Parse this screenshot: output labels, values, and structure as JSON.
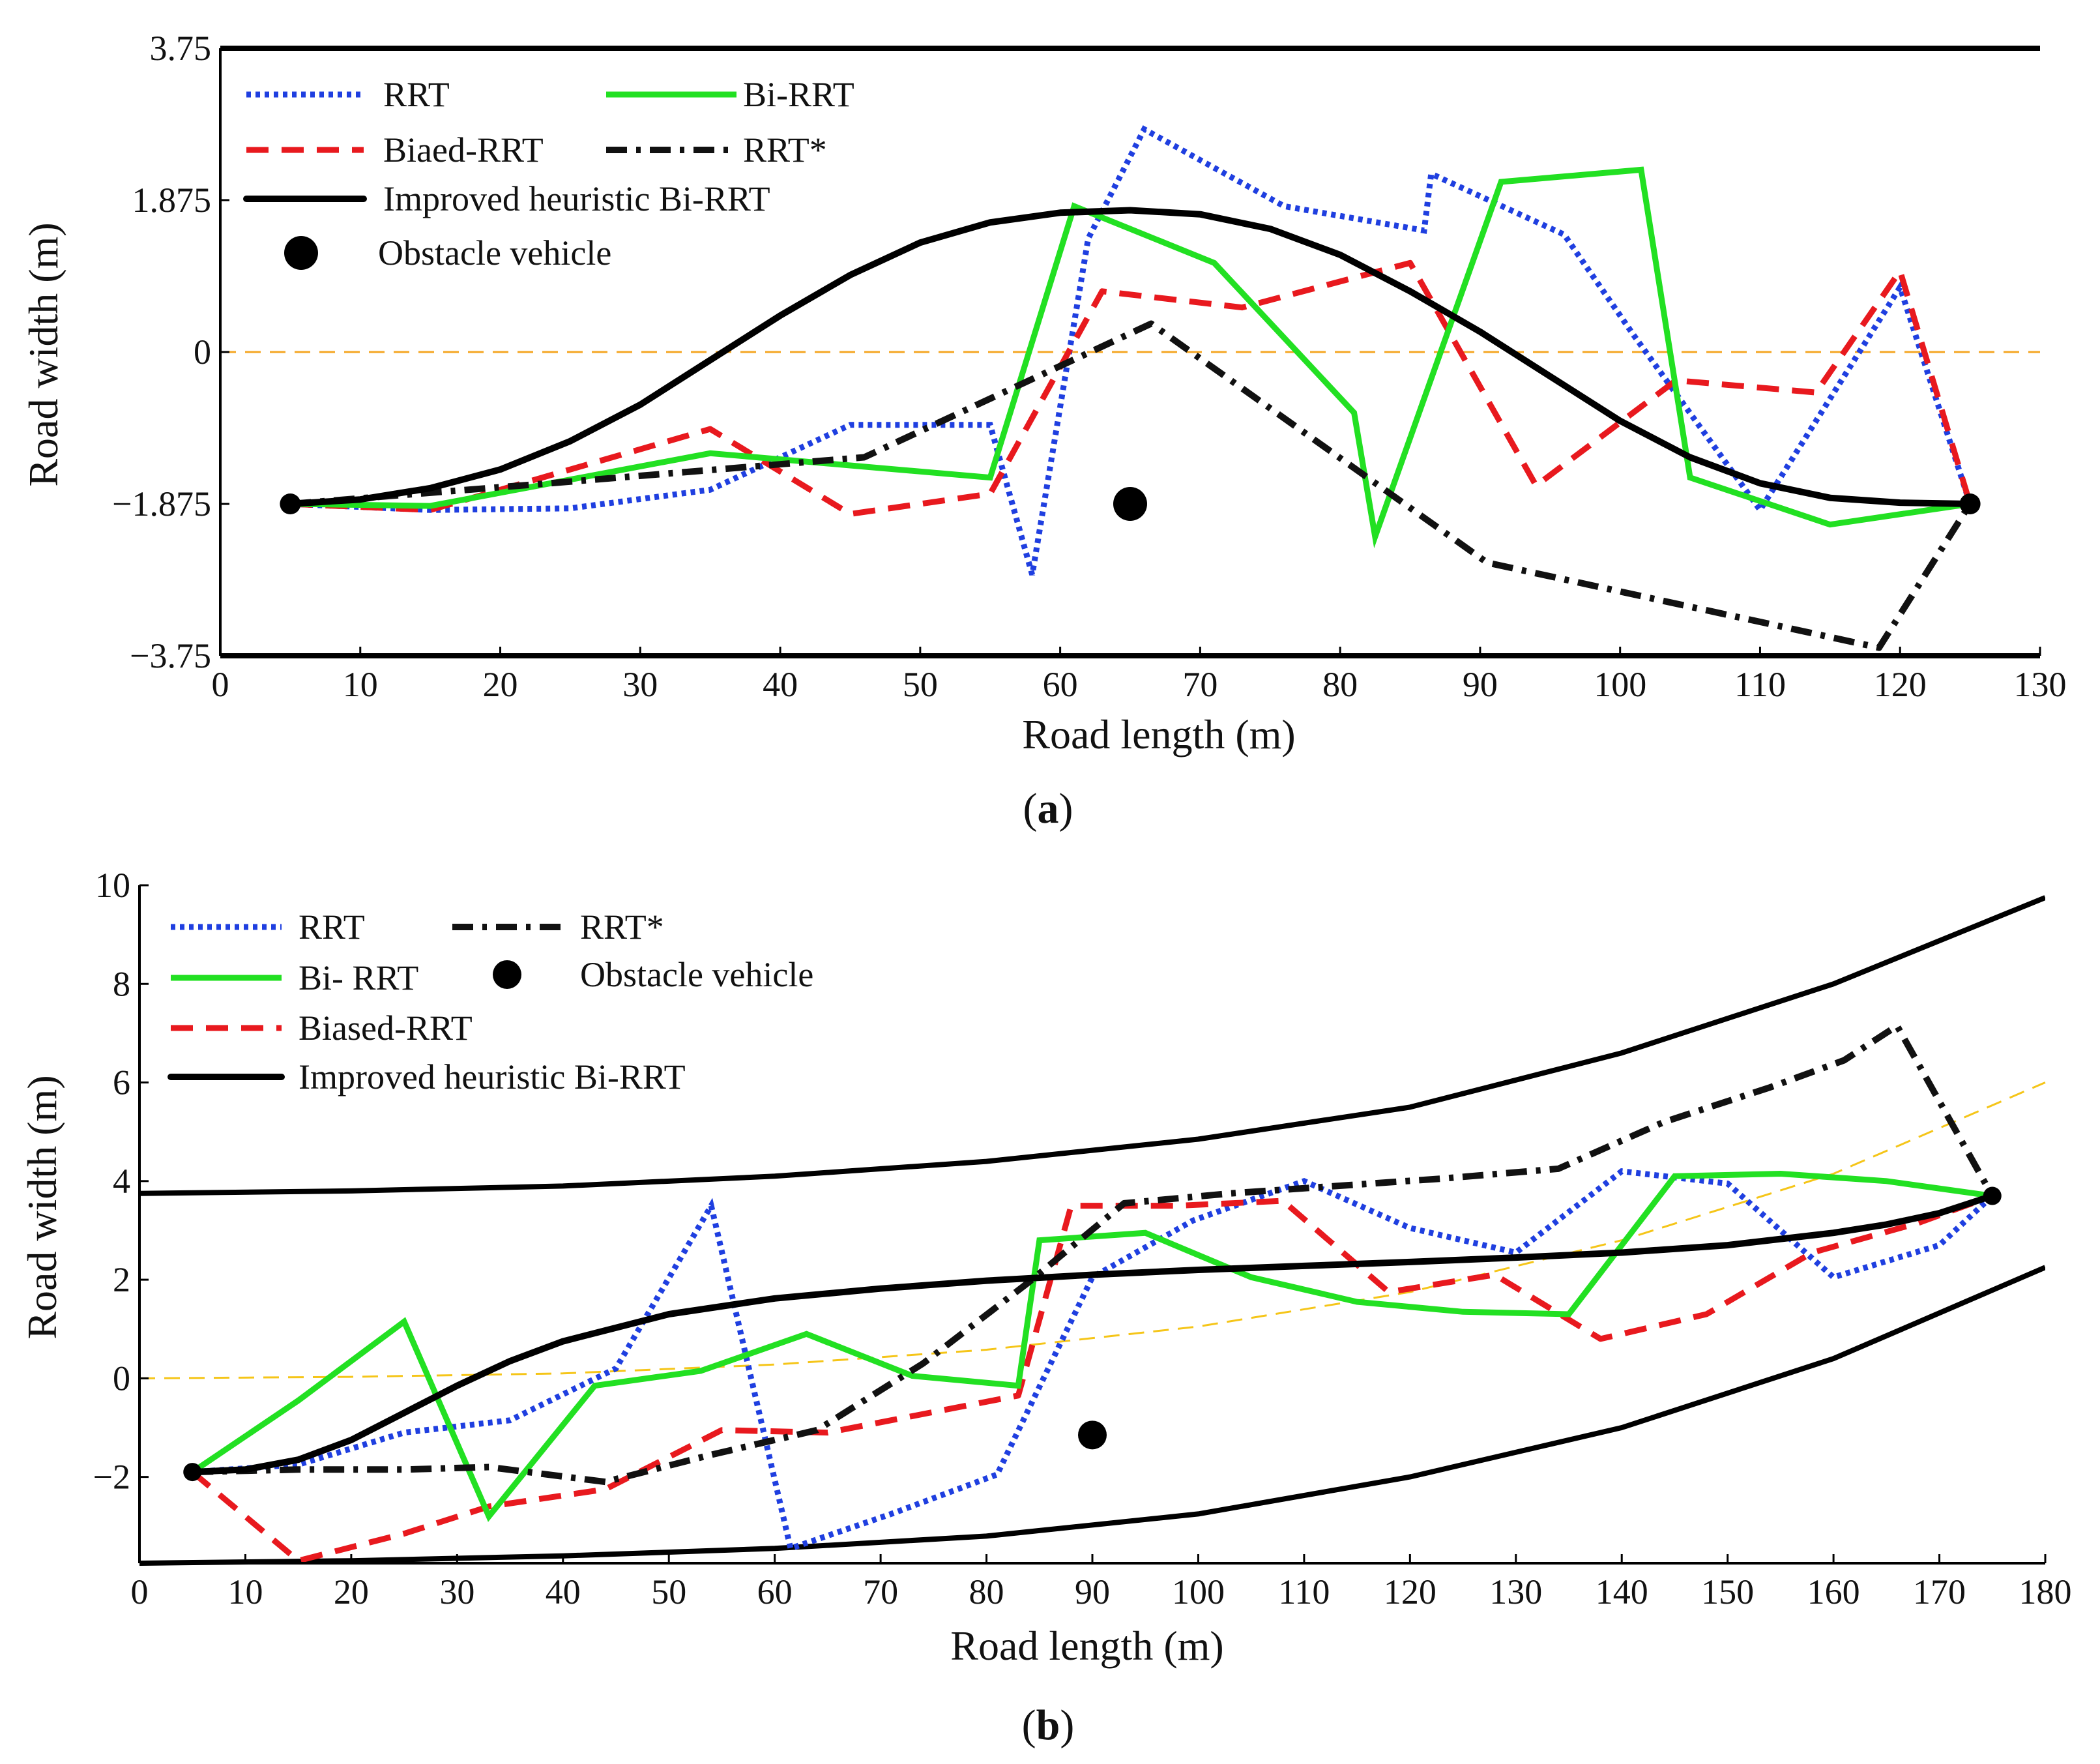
{
  "chart_data": [
    {
      "type": "line",
      "panel_label_open": "(",
      "panel_label_letter": "a",
      "panel_label_close": ")",
      "xlabel": "Road length (m)",
      "ylabel": "Road width (m)",
      "xlim": [
        0,
        130
      ],
      "ylim": [
        -3.75,
        3.75
      ],
      "x_ticks": [
        0,
        10,
        20,
        30,
        40,
        50,
        60,
        70,
        80,
        90,
        100,
        110,
        120,
        130
      ],
      "x_tick_labels": [
        "0",
        "10",
        "20",
        "30",
        "40",
        "50",
        "60",
        "70",
        "80",
        "90",
        "100",
        "110",
        "120",
        "130"
      ],
      "y_ticks": [
        -3.75,
        -1.875,
        0,
        1.875,
        3.75
      ],
      "y_tick_labels": [
        "−3.75",
        "−1.875",
        "0",
        "1.875",
        "3.75"
      ],
      "boundaries": [
        {
          "name": "road-upper-boundary",
          "color": "#000000",
          "x": [
            0,
            130
          ],
          "y": [
            3.75,
            3.75
          ]
        },
        {
          "name": "road-lower-boundary",
          "color": "#000000",
          "x": [
            0,
            130
          ],
          "y": [
            -3.75,
            -3.75
          ]
        }
      ],
      "centerline": {
        "name": "lane-centerline",
        "color": "#F5A623",
        "x": [
          0,
          130
        ],
        "y": [
          0,
          0
        ]
      },
      "series": [
        {
          "name": "RRT",
          "legend_label": "RRT",
          "color": "#1F3FE0",
          "style": "dotted",
          "x": [
            5,
            15,
            25,
            35,
            45,
            55,
            58,
            62,
            66,
            76,
            86,
            86.5,
            96,
            101,
            110,
            120,
            125
          ],
          "y": [
            -1.875,
            -1.95,
            -1.93,
            -1.7,
            -0.9,
            -0.9,
            -2.75,
            1.4,
            2.75,
            1.8,
            1.5,
            2.2,
            1.45,
            0.2,
            -1.95,
            0.8,
            -1.875
          ]
        },
        {
          "name": "Biaed-RRT",
          "legend_label": "Biaed-RRT",
          "color": "#E8191E",
          "style": "dashed",
          "x": [
            5,
            15,
            25,
            35,
            45,
            55,
            63,
            73,
            85,
            94,
            104,
            114,
            120,
            125
          ],
          "y": [
            -1.875,
            -1.95,
            -1.45,
            -0.95,
            -2.0,
            -1.75,
            0.75,
            0.55,
            1.1,
            -1.65,
            -0.35,
            -0.5,
            1.0,
            -1.875
          ]
        },
        {
          "name": "Bi-RRT",
          "legend_label": "Bi-RRT",
          "color": "#22E022",
          "style": "solid",
          "x": [
            5,
            15,
            35,
            45,
            55,
            61,
            71,
            81,
            82.5,
            91.5,
            101.5,
            105,
            115,
            125
          ],
          "y": [
            -1.875,
            -1.9,
            -1.25,
            -1.4,
            -1.55,
            1.8,
            1.1,
            -0.75,
            -2.28,
            2.1,
            2.25,
            -1.55,
            -2.13,
            -1.875
          ]
        },
        {
          "name": "RRT*",
          "legend_label": "RRT*",
          "color": "#111111",
          "style": "dashdot",
          "x": [
            5,
            25,
            46,
            66.5,
            90.5,
            118.5,
            125
          ],
          "y": [
            -1.875,
            -1.6,
            -1.3,
            0.35,
            -2.6,
            -3.65,
            -1.875
          ]
        },
        {
          "name": "Improved heuristic Bi-RRT",
          "legend_label": "Improved heuristic Bi-RRT",
          "color": "#000000",
          "style": "solid-thick",
          "x": [
            5,
            10,
            15,
            20,
            25,
            30,
            35,
            40,
            45,
            50,
            55,
            60,
            65,
            70,
            75,
            80,
            85,
            90,
            95,
            100,
            105,
            110,
            115,
            120,
            125
          ],
          "y": [
            -1.875,
            -1.82,
            -1.68,
            -1.45,
            -1.1,
            -0.65,
            -0.1,
            0.45,
            0.95,
            1.35,
            1.6,
            1.72,
            1.75,
            1.7,
            1.52,
            1.2,
            0.75,
            0.25,
            -0.3,
            -0.85,
            -1.3,
            -1.62,
            -1.8,
            -1.86,
            -1.875
          ]
        }
      ],
      "obstacle": {
        "legend_label": "Obstacle vehicle",
        "x": 65,
        "y": -1.875
      },
      "endpoints": [
        {
          "x": 5,
          "y": -1.875
        },
        {
          "x": 125,
          "y": -1.875
        }
      ]
    },
    {
      "type": "line",
      "panel_label_open": "(",
      "panel_label_letter": "b",
      "panel_label_close": ")",
      "xlabel": "Road length (m)",
      "ylabel": "Road width (m)",
      "xlim": [
        0,
        180
      ],
      "ylim": [
        -3.75,
        10
      ],
      "x_ticks": [
        0,
        10,
        20,
        30,
        40,
        50,
        60,
        70,
        80,
        90,
        100,
        110,
        120,
        130,
        140,
        150,
        160,
        170,
        180
      ],
      "x_tick_labels": [
        "0",
        "10",
        "20",
        "30",
        "40",
        "50",
        "60",
        "70",
        "80",
        "90",
        "100",
        "110",
        "120",
        "130",
        "140",
        "150",
        "160",
        "170",
        "180"
      ],
      "y_ticks": [
        -2,
        0,
        2,
        4,
        6,
        8,
        10
      ],
      "y_tick_labels": [
        "−2",
        "0",
        "2",
        "4",
        "6",
        "8",
        "10"
      ],
      "boundaries": [
        {
          "name": "road-upper-boundary",
          "color": "#000000",
          "x": [
            0,
            20,
            40,
            60,
            80,
            100,
            120,
            140,
            160,
            180
          ],
          "y": [
            3.75,
            3.8,
            3.9,
            4.1,
            4.4,
            4.85,
            5.5,
            6.6,
            8.0,
            9.75
          ]
        },
        {
          "name": "road-lower-boundary",
          "color": "#000000",
          "x": [
            0,
            20,
            40,
            60,
            80,
            100,
            120,
            140,
            160,
            180
          ],
          "y": [
            -3.75,
            -3.7,
            -3.6,
            -3.45,
            -3.2,
            -2.75,
            -2.0,
            -1.0,
            0.4,
            2.25
          ]
        }
      ],
      "centerline": {
        "name": "lane-centerline",
        "color": "#F5C518",
        "x": [
          0,
          20,
          40,
          60,
          80,
          100,
          120,
          140,
          160,
          180
        ],
        "y": [
          0,
          0.03,
          0.1,
          0.28,
          0.58,
          1.05,
          1.75,
          2.8,
          4.15,
          6.0
        ]
      },
      "series": [
        {
          "name": "RRT",
          "legend_label": "RRT",
          "color": "#1F3FE0",
          "style": "dotted",
          "x": [
            5,
            15,
            25,
            35,
            45,
            54,
            61.5,
            71,
            81,
            90,
            99.5,
            110,
            120,
            130,
            140,
            150,
            160,
            170,
            175
          ],
          "y": [
            -1.9,
            -1.75,
            -1.1,
            -0.85,
            0.2,
            3.5,
            -3.45,
            -2.75,
            -1.95,
            2.05,
            3.2,
            4.0,
            3.05,
            2.55,
            4.2,
            3.95,
            2.05,
            2.7,
            3.7
          ]
        },
        {
          "name": "Biased-RRT",
          "legend_label": "Biased-RRT",
          "color": "#E8191E",
          "style": "dashed",
          "x": [
            5,
            15,
            25,
            33,
            44,
            55,
            65,
            83,
            88,
            98,
            108,
            118,
            128,
            138,
            148,
            158,
            168,
            175
          ],
          "y": [
            -1.9,
            -3.7,
            -3.15,
            -2.6,
            -2.25,
            -1.05,
            -1.1,
            -0.35,
            3.5,
            3.5,
            3.6,
            1.75,
            2.1,
            0.8,
            1.3,
            2.55,
            3.15,
            3.7
          ]
        },
        {
          "name": "Bi- RRT",
          "legend_label": "Bi- RRT",
          "color": "#22E022",
          "style": "solid",
          "x": [
            5,
            15,
            25,
            33,
            43,
            53,
            63,
            73,
            83,
            85,
            95,
            105,
            115,
            125,
            135,
            145,
            155,
            165,
            175
          ],
          "y": [
            -1.9,
            -0.45,
            1.15,
            -2.8,
            -0.15,
            0.15,
            0.9,
            0.05,
            -0.15,
            2.8,
            2.95,
            2.05,
            1.55,
            1.35,
            1.3,
            4.1,
            4.15,
            4.0,
            3.7
          ]
        },
        {
          "name": "RRT*",
          "legend_label": "RRT*",
          "color": "#111111",
          "style": "dashdot",
          "x": [
            5,
            15,
            25,
            33,
            44,
            54,
            64,
            74,
            84,
            93,
            103,
            113,
            123,
            134,
            144,
            154,
            161,
            166,
            175
          ],
          "y": [
            -1.9,
            -1.85,
            -1.85,
            -1.8,
            -2.1,
            -1.55,
            -1.05,
            0.3,
            1.95,
            3.55,
            3.75,
            3.9,
            4.05,
            4.25,
            5.2,
            5.9,
            6.45,
            7.15,
            3.7
          ]
        },
        {
          "name": "Improved heuristic Bi-RRT",
          "legend_label": "Improved heuristic Bi-RRT",
          "color": "#000000",
          "style": "solid-thick",
          "x": [
            5,
            10,
            15,
            20,
            25,
            30,
            35,
            40,
            50,
            60,
            70,
            80,
            90,
            100,
            110,
            120,
            130,
            140,
            150,
            160,
            165,
            170,
            175
          ],
          "y": [
            -1.9,
            -1.85,
            -1.65,
            -1.25,
            -0.7,
            -0.15,
            0.35,
            0.75,
            1.3,
            1.62,
            1.82,
            1.98,
            2.1,
            2.2,
            2.28,
            2.36,
            2.45,
            2.55,
            2.7,
            2.95,
            3.12,
            3.35,
            3.7
          ]
        }
      ],
      "obstacle": {
        "legend_label": "Obstacle vehicle",
        "x": 90,
        "y": -1.15
      },
      "endpoints": [
        {
          "x": 5,
          "y": -1.9
        },
        {
          "x": 175,
          "y": 3.7
        }
      ]
    }
  ]
}
